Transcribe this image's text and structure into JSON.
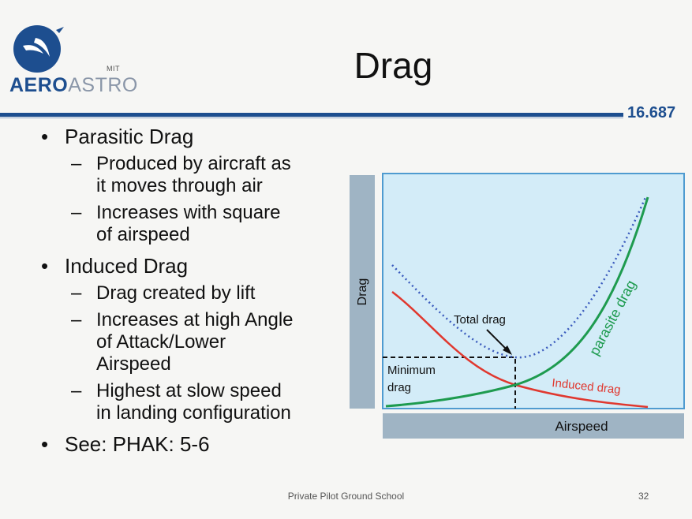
{
  "logo": {
    "mit": "MIT",
    "aero": "AERO",
    "astro": "ASTRO"
  },
  "title": "Drag",
  "course": "16.687",
  "bullets": {
    "parasitic": {
      "label": "Parasitic Drag",
      "sub1_l1": "Produced by aircraft as",
      "sub1_l2": "it moves through air",
      "sub2_l1": "Increases with square",
      "sub2_l2": "of airspeed"
    },
    "induced": {
      "label": "Induced Drag",
      "sub1_l1": "Drag created by lift",
      "sub2_l1": "Increases at high Angle",
      "sub2_l2": "of Attack/Lower",
      "sub2_l3": "Airspeed",
      "sub3_l1": "Highest at slow speed",
      "sub3_l2": "in landing configuration"
    },
    "see": "See: PHAK: 5-6"
  },
  "chart_data": {
    "type": "line",
    "xlabel": "Airspeed",
    "ylabel": "Drag",
    "annotations": {
      "total": "Total drag",
      "min_l1": "Minimum",
      "min_l2": "drag",
      "parasite": "parasite drag",
      "induced": "Induced drag"
    },
    "colors": {
      "parasite": "#1e9b4f",
      "induced": "#e0382f",
      "total": "#3b5bbd",
      "plot_bg": "#d3ecf8",
      "axis": "#4f9bd0",
      "label_bar": "#9fb4c4"
    }
  },
  "footer": {
    "text": "Private Pilot Ground School",
    "page": "32"
  }
}
